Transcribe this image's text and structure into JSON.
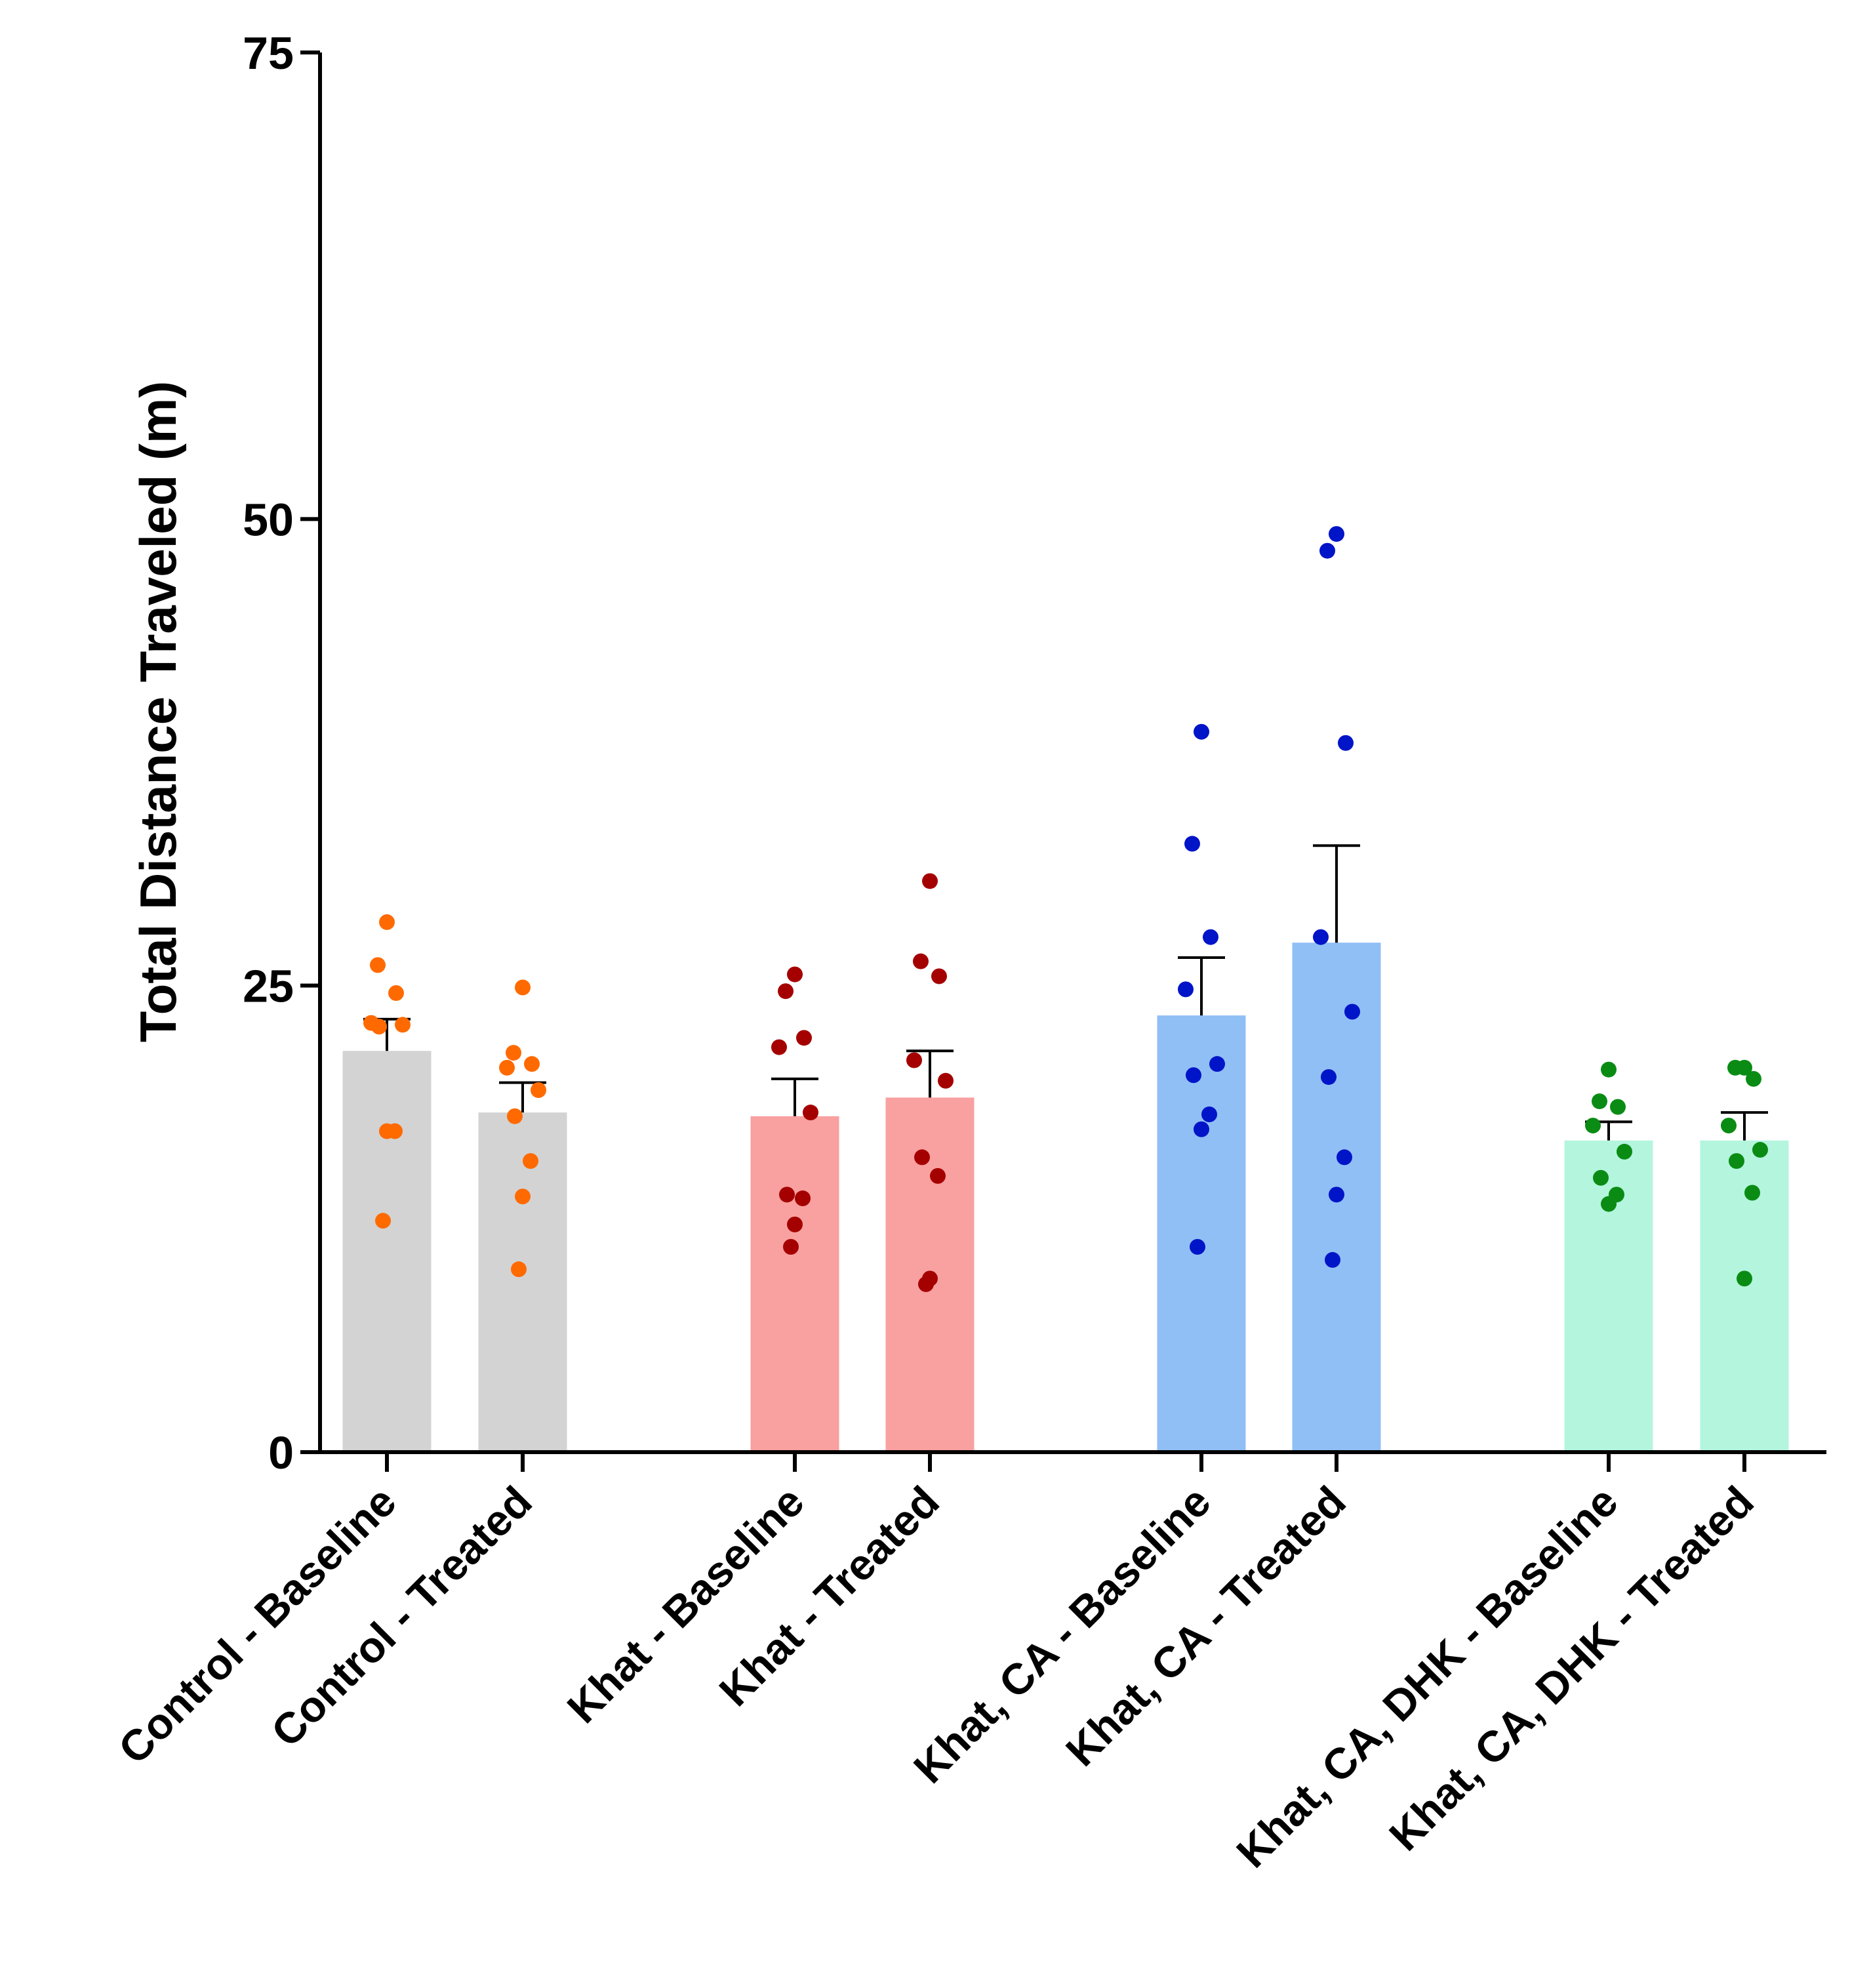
{
  "chart_data": {
    "type": "bar",
    "title": "",
    "xlabel": "",
    "ylabel": "Total Distance Traveled (m)",
    "ylim": [
      0,
      75
    ],
    "yticks": [
      0,
      25,
      50,
      75
    ],
    "categories": [
      "Control - Baseline",
      "Control - Treated",
      "Khat - Baseline",
      "Khat - Treated",
      "Khat, CA - Baseline",
      "Khat, CA - Treated",
      "Khat, CA, DHK - Baseline",
      "Khat, CA, DHK - Treated"
    ],
    "bars": [
      {
        "category": "Control - Baseline",
        "mean": 21.5,
        "sem_top": 23.2,
        "bar_color": "#d3d3d3",
        "point_color": "#ff6a00",
        "points": [
          28.4,
          26.1,
          24.6,
          23.0,
          22.9,
          22.8,
          17.2,
          17.2,
          12.4
        ]
      },
      {
        "category": "Control - Treated",
        "mean": 18.2,
        "sem_top": 19.8,
        "bar_color": "#d3d3d3",
        "point_color": "#ff6a00",
        "points": [
          24.9,
          21.4,
          20.8,
          20.6,
          19.4,
          18.0,
          15.6,
          13.7,
          9.8
        ]
      },
      {
        "category": "Khat - Baseline",
        "mean": 18.0,
        "sem_top": 20.0,
        "bar_color": "#f9a0a0",
        "point_color": "#a50000",
        "points": [
          25.6,
          24.7,
          22.2,
          21.7,
          18.2,
          13.8,
          13.6,
          12.2,
          11.0
        ]
      },
      {
        "category": "Khat - Treated",
        "mean": 19.0,
        "sem_top": 21.5,
        "bar_color": "#f9a0a0",
        "point_color": "#a50000",
        "points": [
          30.6,
          26.3,
          25.5,
          21.0,
          19.9,
          15.8,
          14.8,
          9.3,
          9.0
        ]
      },
      {
        "category": "Khat, CA - Baseline",
        "mean": 23.4,
        "sem_top": 26.5,
        "bar_color": "#90bff5",
        "point_color": "#0014c8",
        "points": [
          38.6,
          32.6,
          27.6,
          24.8,
          20.8,
          20.2,
          18.1,
          17.3,
          11.0
        ]
      },
      {
        "category": "Khat, CA - Treated",
        "mean": 27.3,
        "sem_top": 32.5,
        "bar_color": "#90bff5",
        "point_color": "#0014c8",
        "points": [
          49.2,
          48.3,
          38.0,
          27.6,
          23.6,
          20.1,
          15.8,
          13.8,
          10.3
        ]
      },
      {
        "category": "Khat, CA, DHK - Baseline",
        "mean": 16.7,
        "sem_top": 17.7,
        "bar_color": "#b4f5de",
        "point_color": "#0a8c14",
        "points": [
          20.5,
          18.8,
          18.5,
          17.5,
          16.1,
          14.7,
          13.8,
          13.3
        ]
      },
      {
        "category": "Khat, CA, DHK - Treated",
        "mean": 16.7,
        "sem_top": 18.2,
        "bar_color": "#b4f5de",
        "point_color": "#0a8c14",
        "points": [
          20.6,
          20.6,
          20.0,
          17.5,
          16.2,
          15.6,
          13.9,
          9.3
        ]
      }
    ]
  }
}
